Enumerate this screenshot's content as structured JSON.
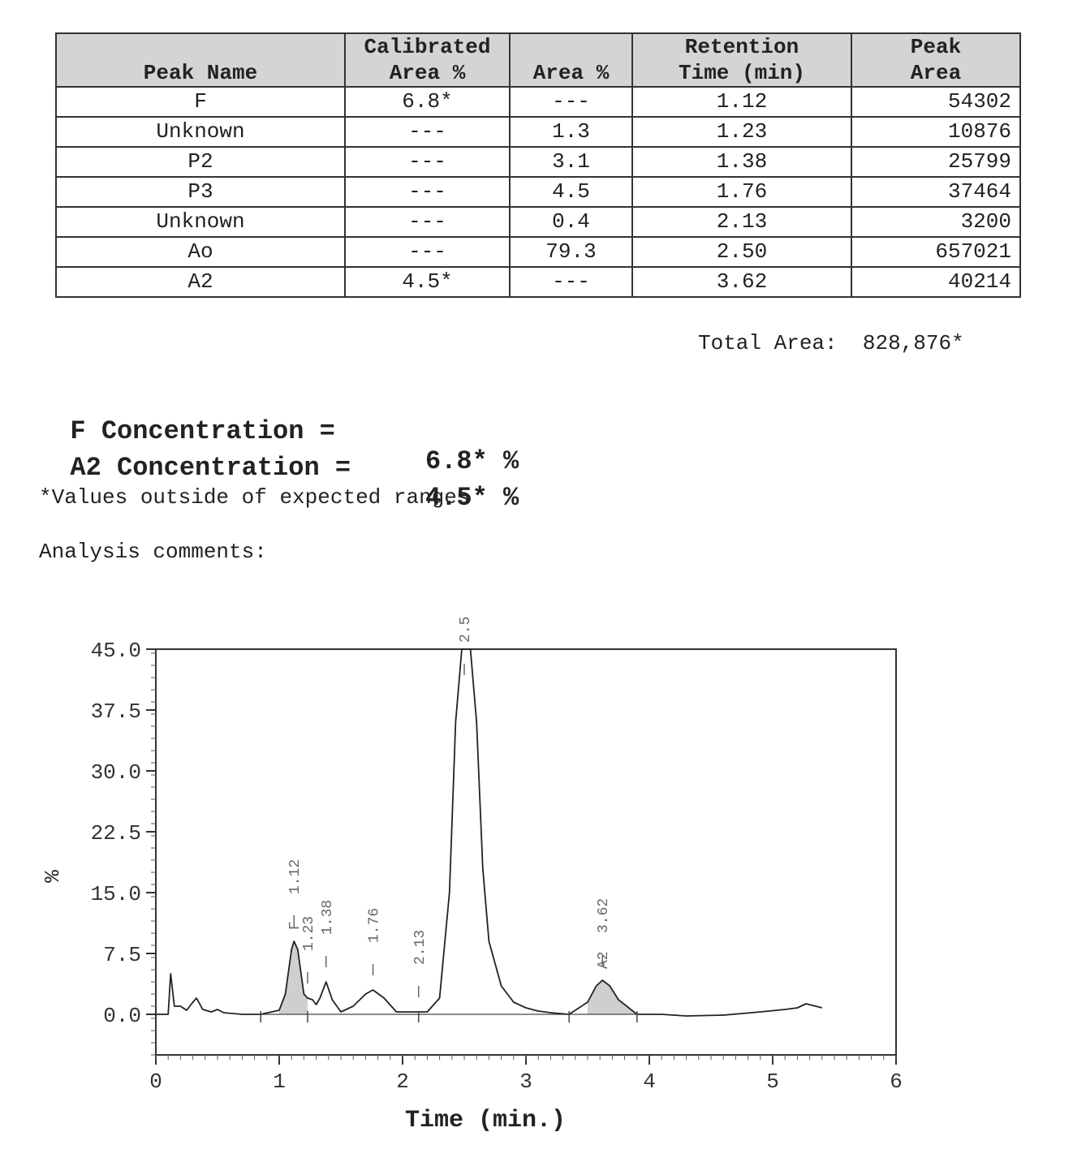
{
  "table": {
    "headers": [
      {
        "line1": "",
        "line2": "Peak Name"
      },
      {
        "line1": "Calibrated",
        "line2": "Area %"
      },
      {
        "line1": "",
        "line2": "Area %"
      },
      {
        "line1": "Retention",
        "line2": "Time (min)"
      },
      {
        "line1": "Peak",
        "line2": "Area"
      }
    ],
    "rows": [
      {
        "name": "F",
        "cal_area": "6.8*",
        "area_pct": "---",
        "rt": "1.12",
        "peak_area": "54302"
      },
      {
        "name": "Unknown",
        "cal_area": "---",
        "area_pct": "1.3",
        "rt": "1.23",
        "peak_area": "10876"
      },
      {
        "name": "P2",
        "cal_area": "---",
        "area_pct": "3.1",
        "rt": "1.38",
        "peak_area": "25799"
      },
      {
        "name": "P3",
        "cal_area": "---",
        "area_pct": "4.5",
        "rt": "1.76",
        "peak_area": "37464"
      },
      {
        "name": "Unknown",
        "cal_area": "---",
        "area_pct": "0.4",
        "rt": "2.13",
        "peak_area": "3200"
      },
      {
        "name": "Ao",
        "cal_area": "---",
        "area_pct": "79.3",
        "rt": "2.50",
        "peak_area": "657021"
      },
      {
        "name": "A2",
        "cal_area": "4.5*",
        "area_pct": "---",
        "rt": "3.62",
        "peak_area": "40214"
      }
    ]
  },
  "total_area": {
    "label": "Total Area:",
    "value": "828,876*"
  },
  "concentrations": [
    {
      "label": "F Concentration =",
      "value": "6.8* %"
    },
    {
      "label": "A2 Concentration =",
      "value": "4.5* %"
    }
  ],
  "footnote": "*Values outside of expected ranges",
  "comments_label": "Analysis comments:",
  "chart_data": {
    "type": "line",
    "xlabel": "Time (min.)",
    "ylabel": "%",
    "xlim": [
      0,
      6
    ],
    "ylim": [
      -5,
      45
    ],
    "x_ticks": [
      "0",
      "1",
      "2",
      "3",
      "4",
      "5",
      "6"
    ],
    "y_ticks": [
      "45.0",
      "37.5",
      "30.0",
      "22.5",
      "15.0",
      "7.5",
      "0.0"
    ],
    "grid": false,
    "series": [
      {
        "x": [
          0.0,
          0.1,
          0.12,
          0.15,
          0.2,
          0.25,
          0.3,
          0.33,
          0.38,
          0.45,
          0.5,
          0.55,
          0.7,
          0.85,
          1.0,
          1.05,
          1.1,
          1.12,
          1.15,
          1.2,
          1.23,
          1.27,
          1.3,
          1.33,
          1.38,
          1.43,
          1.5,
          1.6,
          1.7,
          1.76,
          1.85,
          1.95,
          2.1,
          2.13,
          2.2,
          2.3,
          2.38,
          2.43,
          2.48,
          2.55,
          2.6,
          2.65,
          2.7,
          2.8,
          2.9,
          3.0,
          3.1,
          3.2,
          3.35,
          3.5,
          3.57,
          3.62,
          3.68,
          3.75,
          3.9,
          4.1,
          4.3,
          4.6,
          4.9,
          5.1,
          5.2,
          5.27,
          5.35,
          5.4
        ],
        "y": [
          0.0,
          0.0,
          5.0,
          1.0,
          1.0,
          0.5,
          1.5,
          2.0,
          0.6,
          0.3,
          0.6,
          0.2,
          0.0,
          0.0,
          0.5,
          2.5,
          8.0,
          9.0,
          8.0,
          2.5,
          2.0,
          1.8,
          1.2,
          2.0,
          4.0,
          1.8,
          0.3,
          1.0,
          2.5,
          3.0,
          2.0,
          0.3,
          0.3,
          0.3,
          0.3,
          2.0,
          15.0,
          36.0,
          45.0,
          45.0,
          36.0,
          18.0,
          9.0,
          3.5,
          1.5,
          0.8,
          0.4,
          0.2,
          0.0,
          1.5,
          3.5,
          4.2,
          3.5,
          1.8,
          0.0,
          0.0,
          -0.2,
          -0.1,
          0.3,
          0.6,
          0.8,
          1.3,
          1.0,
          0.8
        ]
      }
    ],
    "peak_labels": [
      {
        "rt": 1.12,
        "text": "1.12",
        "name": "F"
      },
      {
        "rt": 1.23,
        "text": "1.23",
        "name": ""
      },
      {
        "rt": 1.38,
        "text": "1.38",
        "name": ""
      },
      {
        "rt": 1.76,
        "text": "1.76",
        "name": ""
      },
      {
        "rt": 2.13,
        "text": "2.13",
        "name": ""
      },
      {
        "rt": 2.5,
        "text": "2.50",
        "name": ""
      },
      {
        "rt": 3.62,
        "text": "3.62",
        "name": "A2"
      }
    ]
  }
}
